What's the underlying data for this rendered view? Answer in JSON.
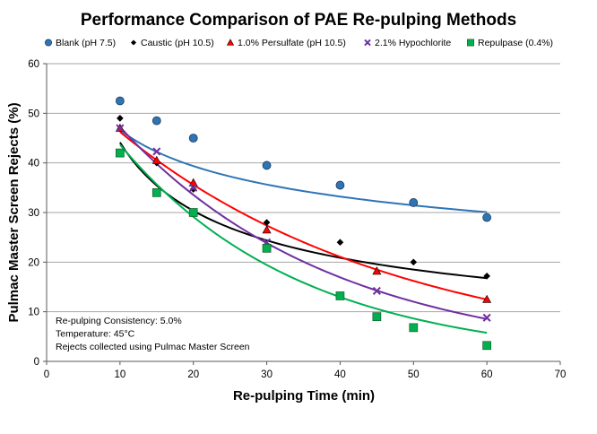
{
  "chart_data": {
    "type": "scatter",
    "title": "Performance Comparison of PAE Re-pulping Methods",
    "xlabel": "Re-pulping Time (min)",
    "ylabel": "Pulmac Master Screen Rejects (%)",
    "xlim": [
      0,
      70
    ],
    "ylim": [
      0,
      60
    ],
    "xticks": [
      0,
      10,
      20,
      30,
      40,
      50,
      60,
      70
    ],
    "yticks": [
      0,
      10,
      20,
      30,
      40,
      50,
      60
    ],
    "grid": "horizontal",
    "legend_position": "top",
    "series": [
      {
        "name": "Blank (pH 7.5)",
        "marker": "circle",
        "color": "#2E75B6",
        "points": [
          [
            10,
            52.5
          ],
          [
            15,
            48.5
          ],
          [
            20,
            45
          ],
          [
            30,
            39.5
          ],
          [
            40,
            35.5
          ],
          [
            50,
            32
          ],
          [
            60,
            29
          ]
        ],
        "trend": {
          "type": "power",
          "a": 82.0,
          "b": -0.245
        }
      },
      {
        "name": "Caustic (pH 10.5)",
        "marker": "diamond",
        "color": "#000000",
        "points": [
          [
            10,
            49
          ],
          [
            15,
            40
          ],
          [
            20,
            34.7
          ],
          [
            30,
            28
          ],
          [
            40,
            24
          ],
          [
            50,
            20
          ],
          [
            60,
            17.2
          ]
        ],
        "trend": {
          "type": "power",
          "a": 153.0,
          "b": -0.54
        }
      },
      {
        "name": "1.0% Persulfate (pH 10.5)",
        "marker": "triangle",
        "color": "#FF0000",
        "points": [
          [
            10,
            47
          ],
          [
            15,
            40.5
          ],
          [
            20,
            36
          ],
          [
            30,
            26.5
          ],
          [
            45,
            18.2
          ],
          [
            60,
            12.5
          ]
        ],
        "trend": {
          "type": "exponential",
          "a": 60.1,
          "b": -0.0262
        }
      },
      {
        "name": "2.1% Hypochlorite",
        "marker": "x",
        "color": "#7030A0",
        "points": [
          [
            10,
            47
          ],
          [
            15,
            42.3
          ],
          [
            20,
            35
          ],
          [
            30,
            24
          ],
          [
            45,
            14.2
          ],
          [
            60,
            8.8
          ]
        ],
        "trend": {
          "type": "exponential",
          "a": 66.5,
          "b": -0.0342
        }
      },
      {
        "name": "Repulpase (0.4%)",
        "marker": "square",
        "color": "#00B050",
        "points": [
          [
            10,
            42
          ],
          [
            15,
            34
          ],
          [
            20,
            30
          ],
          [
            30,
            22.8
          ],
          [
            40,
            13.2
          ],
          [
            45,
            9
          ],
          [
            50,
            6.8
          ],
          [
            60,
            3.2
          ]
        ],
        "trend": {
          "type": "exponential",
          "a": 65.5,
          "b": -0.0405
        }
      }
    ],
    "annotations": [
      "Re-pulping Consistency:  5.0%",
      "Temperature:  45°C",
      "Rejects collected using Pulmac Master Screen"
    ]
  }
}
